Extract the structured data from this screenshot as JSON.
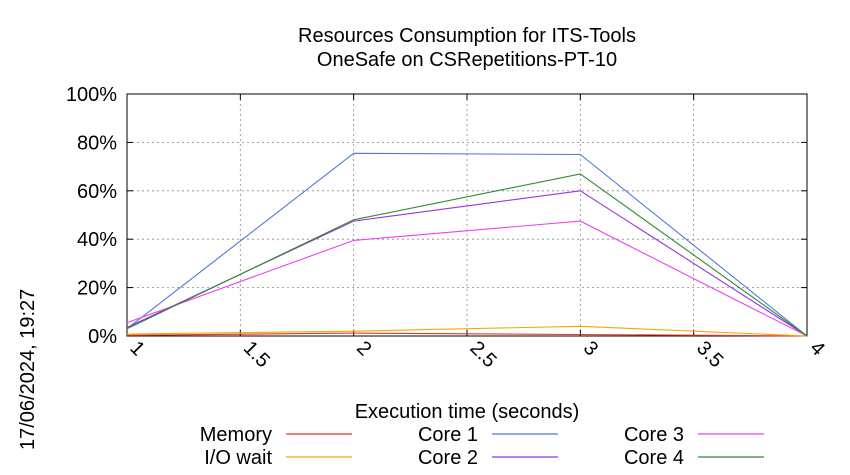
{
  "chart_data": {
    "type": "line",
    "title": [
      "Resources Consumption for ITS-Tools",
      "OneSafe on CSRepetitions-PT-10"
    ],
    "xlabel": "Execution time (seconds)",
    "ylabel": "",
    "timestamp": "17/06/2024, 19:27",
    "xlim": [
      1,
      4
    ],
    "ylim": [
      0,
      100
    ],
    "x_ticks": [
      {
        "value": 1,
        "label": "1"
      },
      {
        "value": 1.5,
        "label": "1.5"
      },
      {
        "value": 2,
        "label": "2"
      },
      {
        "value": 2.5,
        "label": "2.5"
      },
      {
        "value": 3,
        "label": "3"
      },
      {
        "value": 3.5,
        "label": "3.5"
      },
      {
        "value": 4,
        "label": "4"
      }
    ],
    "y_ticks": [
      {
        "value": 0,
        "label": "0%"
      },
      {
        "value": 20,
        "label": "20%"
      },
      {
        "value": 40,
        "label": "40%"
      },
      {
        "value": 60,
        "label": "60%"
      },
      {
        "value": 80,
        "label": "80%"
      },
      {
        "value": 100,
        "label": "100%"
      }
    ],
    "grid": true,
    "legend_placement": "bottom",
    "x": [
      1,
      2,
      3,
      4
    ],
    "series": [
      {
        "name": "Memory",
        "color": "#e8342c",
        "values": [
          0.3,
          1.2,
          0.6,
          0.0
        ]
      },
      {
        "name": "I/O wait",
        "color": "#f5a800",
        "values": [
          0.8,
          2.0,
          4.0,
          0.0
        ]
      },
      {
        "name": "Core 1",
        "color": "#4f79d9",
        "values": [
          3.0,
          75.5,
          75.0,
          0.0
        ]
      },
      {
        "name": "Core 2",
        "color": "#9a33e0",
        "values": [
          3.5,
          47.5,
          60.0,
          0.0
        ]
      },
      {
        "name": "Core 3",
        "color": "#f040f0",
        "values": [
          5.5,
          39.5,
          47.5,
          0.0
        ]
      },
      {
        "name": "Core 4",
        "color": "#2e8b2e",
        "values": [
          3.0,
          48.0,
          67.0,
          0.0
        ]
      }
    ]
  }
}
